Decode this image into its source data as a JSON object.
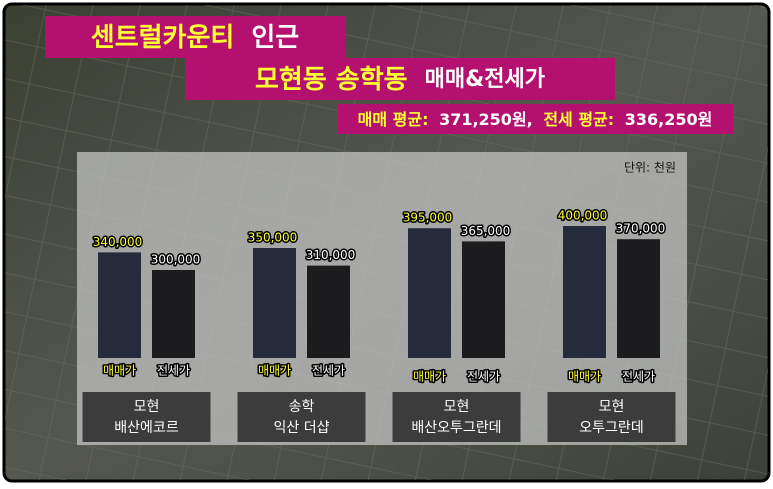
{
  "chart_data": {
    "type": "bar",
    "title": {
      "line1": [
        "센트럴카운티",
        "인근"
      ],
      "line2": [
        "모현동 송학동",
        "매매&전세가"
      ]
    },
    "subtitle": [
      "매매 평균:",
      "371,250원,",
      "전세 평균:",
      "336,250원"
    ],
    "unit": "단위: 천원",
    "categories": [
      [
        "모현",
        "배산에코르"
      ],
      [
        "송학",
        "익산 더샵"
      ],
      [
        "모현",
        "배산오투그란데"
      ],
      [
        "모현",
        "오투그란데"
      ]
    ],
    "series": [
      {
        "name": "매매가",
        "color": "#252b3b",
        "label_color": "#ffff33",
        "values": [
          340000,
          350000,
          395000,
          400000
        ],
        "value_labels": [
          "340,000",
          "350,000",
          "395,000",
          "400,000"
        ]
      },
      {
        "name": "전세가",
        "color": "#1c1b1d",
        "label_color": "#ffffff",
        "values": [
          300000,
          310000,
          365000,
          370000
        ],
        "value_labels": [
          "300,000",
          "310,000",
          "365,000",
          "370,000"
        ]
      }
    ],
    "ylim": [
      100000,
      420000
    ]
  }
}
